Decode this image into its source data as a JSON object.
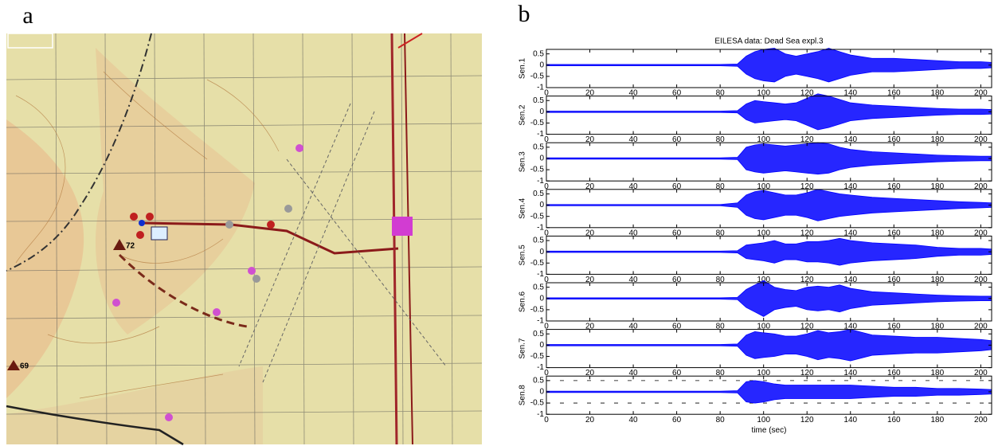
{
  "figure": {
    "label_a": "a",
    "label_b": "b",
    "map_labels": [
      "72",
      "69"
    ]
  },
  "chart_data": [
    {
      "type": "envelope",
      "title": "EILESA data: Dead Sea expl.3",
      "ylabel": "Sen.1",
      "color": "#0000ff",
      "x": [
        0,
        20,
        40,
        60,
        80,
        88,
        92,
        96,
        100,
        105,
        110,
        115,
        120,
        125,
        130,
        135,
        140,
        150,
        160,
        170,
        180,
        190,
        200,
        205
      ],
      "values": [
        0.03,
        0.03,
        0.03,
        0.03,
        0.03,
        0.05,
        0.4,
        0.6,
        0.7,
        0.75,
        0.5,
        0.4,
        0.5,
        0.6,
        0.75,
        0.6,
        0.45,
        0.3,
        0.3,
        0.25,
        0.2,
        0.15,
        0.15,
        0.12
      ],
      "xlim": [
        0,
        205
      ],
      "ylim": [
        -1,
        0.7
      ],
      "xticks": [
        0,
        20,
        40,
        60,
        80,
        100,
        120,
        140,
        160,
        180,
        200
      ],
      "yticks": [
        0.5,
        0,
        -0.5,
        -1
      ]
    },
    {
      "type": "envelope",
      "ylabel": "Sen.2",
      "color": "#0000ff",
      "x": [
        0,
        20,
        40,
        60,
        80,
        88,
        92,
        96,
        100,
        105,
        110,
        115,
        120,
        125,
        130,
        135,
        140,
        150,
        160,
        170,
        180,
        190,
        200,
        205
      ],
      "values": [
        0.03,
        0.03,
        0.03,
        0.03,
        0.03,
        0.05,
        0.35,
        0.5,
        0.45,
        0.4,
        0.35,
        0.4,
        0.6,
        0.8,
        0.7,
        0.55,
        0.4,
        0.3,
        0.25,
        0.2,
        0.15,
        0.12,
        0.12,
        0.1
      ],
      "xlim": [
        0,
        205
      ],
      "ylim": [
        -1,
        0.7
      ],
      "xticks": [
        0,
        20,
        40,
        60,
        80,
        100,
        120,
        140,
        160,
        180,
        200
      ],
      "yticks": [
        0.5,
        0,
        -0.5,
        -1
      ]
    },
    {
      "type": "envelope",
      "ylabel": "Sen.3",
      "color": "#0000ff",
      "x": [
        0,
        20,
        40,
        60,
        80,
        88,
        92,
        96,
        100,
        105,
        110,
        115,
        120,
        125,
        130,
        135,
        140,
        150,
        160,
        170,
        180,
        190,
        200,
        205
      ],
      "values": [
        0.03,
        0.03,
        0.03,
        0.03,
        0.03,
        0.05,
        0.5,
        0.6,
        0.65,
        0.6,
        0.55,
        0.6,
        0.65,
        0.7,
        0.65,
        0.5,
        0.4,
        0.3,
        0.25,
        0.2,
        0.15,
        0.12,
        0.1,
        0.1
      ],
      "xlim": [
        0,
        205
      ],
      "ylim": [
        -1,
        0.7
      ],
      "xticks": [
        0,
        20,
        40,
        60,
        80,
        100,
        120,
        140,
        160,
        180,
        200
      ],
      "yticks": [
        0.5,
        0,
        -0.5,
        -1
      ]
    },
    {
      "type": "envelope",
      "ylabel": "Sen.4",
      "color": "#0000ff",
      "x": [
        0,
        20,
        40,
        60,
        80,
        88,
        92,
        96,
        100,
        105,
        110,
        115,
        120,
        125,
        130,
        135,
        140,
        150,
        160,
        170,
        180,
        190,
        200,
        205
      ],
      "values": [
        0.03,
        0.03,
        0.03,
        0.03,
        0.03,
        0.1,
        0.45,
        0.6,
        0.65,
        0.55,
        0.45,
        0.45,
        0.55,
        0.7,
        0.6,
        0.5,
        0.45,
        0.35,
        0.3,
        0.25,
        0.2,
        0.15,
        0.12,
        0.1
      ],
      "xlim": [
        0,
        205
      ],
      "ylim": [
        -1,
        0.7
      ],
      "xticks": [
        0,
        20,
        40,
        60,
        80,
        100,
        120,
        140,
        160,
        180,
        200
      ],
      "yticks": [
        0.5,
        0,
        -0.5,
        -1
      ]
    },
    {
      "type": "envelope",
      "ylabel": "Sen.5",
      "color": "#0000ff",
      "x": [
        0,
        20,
        40,
        60,
        80,
        88,
        92,
        96,
        100,
        105,
        110,
        115,
        120,
        125,
        130,
        135,
        140,
        150,
        160,
        170,
        180,
        190,
        200,
        205
      ],
      "values": [
        0.03,
        0.03,
        0.03,
        0.03,
        0.03,
        0.05,
        0.3,
        0.35,
        0.4,
        0.5,
        0.35,
        0.35,
        0.45,
        0.45,
        0.5,
        0.6,
        0.5,
        0.4,
        0.35,
        0.3,
        0.2,
        0.15,
        0.15,
        0.12
      ],
      "xlim": [
        0,
        205
      ],
      "ylim": [
        -1,
        0.7
      ],
      "xticks": [
        0,
        20,
        40,
        60,
        80,
        100,
        120,
        140,
        160,
        180,
        200
      ],
      "yticks": [
        0.5,
        0,
        -0.5,
        -1
      ]
    },
    {
      "type": "envelope",
      "ylabel": "Sen.6",
      "color": "#0000ff",
      "x": [
        0,
        20,
        40,
        60,
        80,
        88,
        92,
        96,
        100,
        105,
        110,
        115,
        120,
        125,
        130,
        135,
        140,
        150,
        160,
        170,
        180,
        190,
        200,
        205
      ],
      "values": [
        0.03,
        0.03,
        0.03,
        0.03,
        0.03,
        0.05,
        0.4,
        0.6,
        0.8,
        0.5,
        0.4,
        0.35,
        0.5,
        0.55,
        0.5,
        0.6,
        0.45,
        0.3,
        0.25,
        0.2,
        0.15,
        0.12,
        0.1,
        0.1
      ],
      "xlim": [
        0,
        205
      ],
      "ylim": [
        -1,
        0.7
      ],
      "xticks": [
        0,
        20,
        40,
        60,
        80,
        100,
        120,
        140,
        160,
        180,
        200
      ],
      "yticks": [
        0.5,
        0,
        -0.5,
        -1
      ]
    },
    {
      "type": "envelope",
      "ylabel": "Sen.7",
      "color": "#0000ff",
      "x": [
        0,
        20,
        40,
        60,
        80,
        88,
        92,
        96,
        100,
        105,
        110,
        115,
        120,
        125,
        130,
        135,
        140,
        150,
        160,
        170,
        180,
        190,
        200,
        205
      ],
      "values": [
        0.03,
        0.03,
        0.03,
        0.03,
        0.03,
        0.05,
        0.45,
        0.6,
        0.55,
        0.5,
        0.4,
        0.4,
        0.5,
        0.65,
        0.55,
        0.6,
        0.7,
        0.45,
        0.4,
        0.35,
        0.35,
        0.3,
        0.25,
        0.2
      ],
      "xlim": [
        0,
        205
      ],
      "ylim": [
        -1,
        0.7
      ],
      "xticks": [
        0,
        20,
        40,
        60,
        80,
        100,
        120,
        140,
        160,
        180,
        200
      ],
      "yticks": [
        0.5,
        0,
        -0.5,
        -1
      ]
    },
    {
      "type": "envelope",
      "ylabel": "Sen.8",
      "xlabel": "time (sec)",
      "color": "#0000ff",
      "reference_lines": [
        0.5,
        -0.5
      ],
      "x": [
        0,
        20,
        40,
        60,
        80,
        88,
        92,
        96,
        100,
        105,
        110,
        115,
        120,
        125,
        130,
        135,
        140,
        150,
        160,
        170,
        180,
        190,
        200,
        205
      ],
      "values": [
        0.03,
        0.03,
        0.03,
        0.03,
        0.03,
        0.05,
        0.45,
        0.5,
        0.45,
        0.35,
        0.3,
        0.3,
        0.3,
        0.3,
        0.3,
        0.3,
        0.3,
        0.25,
        0.2,
        0.2,
        0.15,
        0.15,
        0.12,
        0.1
      ],
      "xlim": [
        0,
        205
      ],
      "ylim": [
        -1,
        0.7
      ],
      "xticks": [
        0,
        20,
        40,
        60,
        80,
        100,
        120,
        140,
        160,
        180,
        200
      ],
      "yticks": [
        0.5,
        0,
        -0.5,
        -1
      ]
    }
  ]
}
